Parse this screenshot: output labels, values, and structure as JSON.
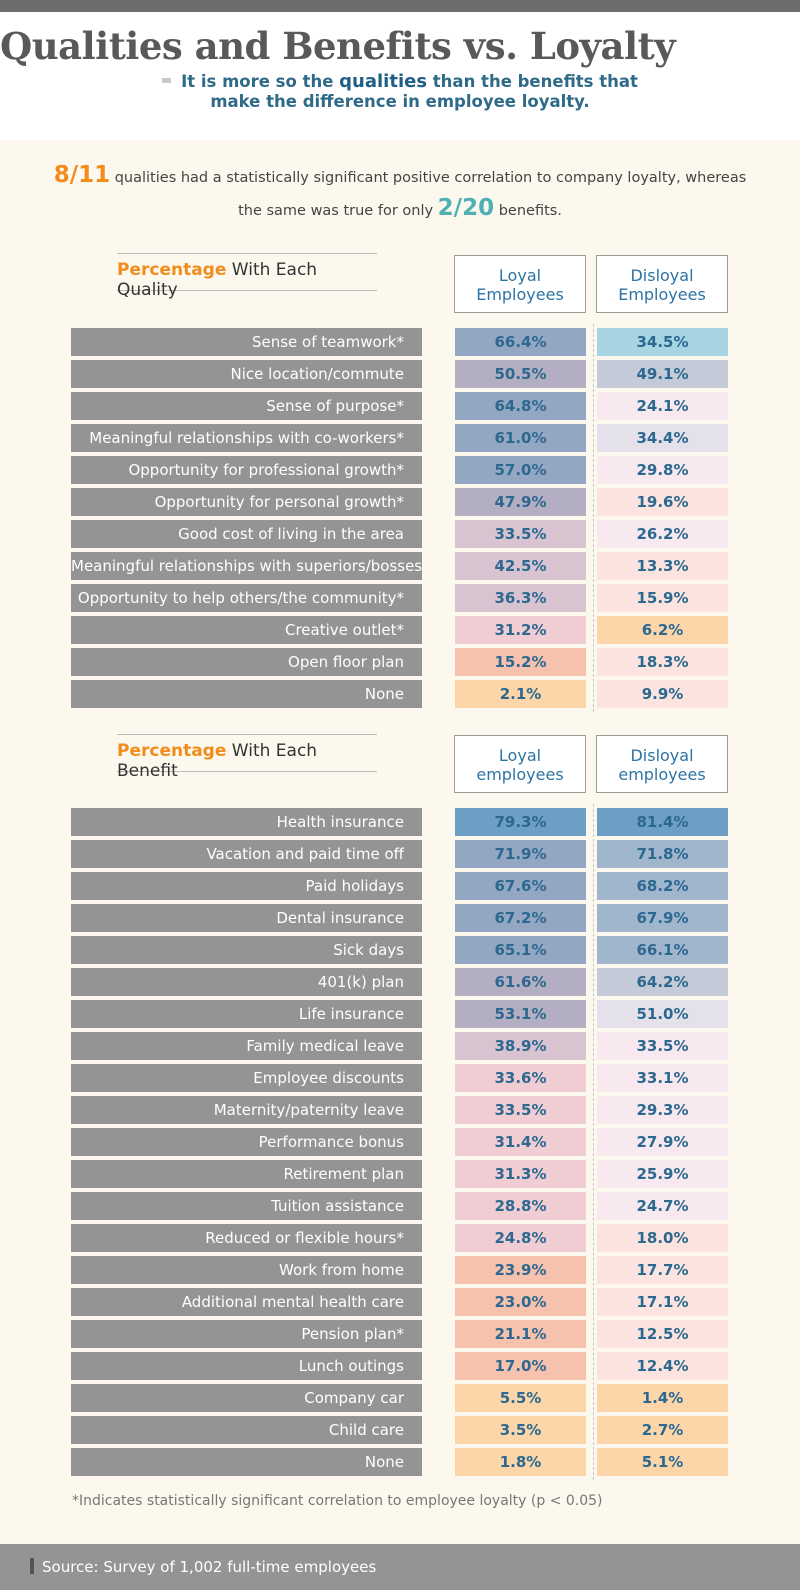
{
  "header": {
    "title": "Qualities and Benefits vs. Loyalty",
    "subtitle_part1": "It is more so the",
    "subtitle_emph": "qualities",
    "subtitle_part2": "than the benefits that make the difference in employee loyalty."
  },
  "intro": {
    "stat1": "8/11",
    "text1": "qualities had a statistically significant positive correlation to company loyalty, whereas the same was true for only",
    "stat2": "2/20",
    "text2": "benefits."
  },
  "colors": {
    "loyal_scale": [
      "#fcd6a8",
      "#f6c2ad",
      "#efcdd3",
      "#d8c3d0",
      "#b4aec2",
      "#93a7c2",
      "#6d9ec4"
    ],
    "disloyal_scale": [
      "#fcd6a8",
      "#fbe4df",
      "#f7e9ef",
      "#e4e1ea",
      "#c5cad9",
      "#9fb6cd",
      "#6d9ec4"
    ],
    "top_disloyal_quality": "#a6d4e3"
  },
  "chart_data": [
    {
      "type": "table",
      "title_accent": "Percentage",
      "title_rest": "With Each Quality",
      "columns": [
        "Loyal Employees",
        "Disloyal Employees"
      ],
      "rows": [
        {
          "label": "Sense of teamwork*",
          "loyal": 66.4,
          "disloyal": 34.5,
          "loyal_text": "66.4%",
          "disloyal_text": "34.5%"
        },
        {
          "label": "Nice location/commute",
          "loyal": 50.5,
          "disloyal": 49.1,
          "loyal_text": "50.5%",
          "disloyal_text": "49.1%"
        },
        {
          "label": "Sense of purpose*",
          "loyal": 64.8,
          "disloyal": 24.1,
          "loyal_text": "64.8%",
          "disloyal_text": "24.1%"
        },
        {
          "label": "Meaningful relationships with co-workers*",
          "loyal": 61.0,
          "disloyal": 34.4,
          "loyal_text": "61.0%",
          "disloyal_text": "34.4%"
        },
        {
          "label": "Opportunity for professional growth*",
          "loyal": 57.0,
          "disloyal": 29.8,
          "loyal_text": "57.0%",
          "disloyal_text": "29.8%"
        },
        {
          "label": "Opportunity for personal growth*",
          "loyal": 47.9,
          "disloyal": 19.6,
          "loyal_text": "47.9%",
          "disloyal_text": "19.6%"
        },
        {
          "label": "Good cost of living in the area",
          "loyal": 33.5,
          "disloyal": 26.2,
          "loyal_text": "33.5%",
          "disloyal_text": "26.2%"
        },
        {
          "label": "Meaningful relationships with superiors/bosses*",
          "loyal": 42.5,
          "disloyal": 13.3,
          "loyal_text": "42.5%",
          "disloyal_text": "13.3%"
        },
        {
          "label": "Opportunity to help others/the community*",
          "loyal": 36.3,
          "disloyal": 15.9,
          "loyal_text": "36.3%",
          "disloyal_text": "15.9%"
        },
        {
          "label": "Creative outlet*",
          "loyal": 31.2,
          "disloyal": 6.2,
          "loyal_text": "31.2%",
          "disloyal_text": "6.2%"
        },
        {
          "label": "Open floor plan",
          "loyal": 15.2,
          "disloyal": 18.3,
          "loyal_text": "15.2%",
          "disloyal_text": "18.3%"
        },
        {
          "label": "None",
          "loyal": 2.1,
          "disloyal": 9.9,
          "loyal_text": "2.1%",
          "disloyal_text": "9.9%"
        }
      ]
    },
    {
      "type": "table",
      "title_accent": "Percentage",
      "title_rest": "With Each Benefit",
      "columns": [
        "Loyal employees",
        "Disloyal employees"
      ],
      "rows": [
        {
          "label": "Health insurance",
          "loyal": 79.3,
          "disloyal": 81.4,
          "loyal_text": "79.3%",
          "disloyal_text": "81.4%"
        },
        {
          "label": "Vacation and paid time off",
          "loyal": 71.9,
          "disloyal": 71.8,
          "loyal_text": "71.9%",
          "disloyal_text": "71.8%"
        },
        {
          "label": "Paid holidays",
          "loyal": 67.6,
          "disloyal": 68.2,
          "loyal_text": "67.6%",
          "disloyal_text": "68.2%"
        },
        {
          "label": "Dental insurance",
          "loyal": 67.2,
          "disloyal": 67.9,
          "loyal_text": "67.2%",
          "disloyal_text": "67.9%"
        },
        {
          "label": "Sick days",
          "loyal": 65.1,
          "disloyal": 66.1,
          "loyal_text": "65.1%",
          "disloyal_text": "66.1%"
        },
        {
          "label": "401(k) plan",
          "loyal": 61.6,
          "disloyal": 64.2,
          "loyal_text": "61.6%",
          "disloyal_text": "64.2%"
        },
        {
          "label": "Life insurance",
          "loyal": 53.1,
          "disloyal": 51.0,
          "loyal_text": "53.1%",
          "disloyal_text": "51.0%"
        },
        {
          "label": "Family medical leave",
          "loyal": 38.9,
          "disloyal": 33.5,
          "loyal_text": "38.9%",
          "disloyal_text": "33.5%"
        },
        {
          "label": "Employee discounts",
          "loyal": 33.6,
          "disloyal": 33.1,
          "loyal_text": "33.6%",
          "disloyal_text": "33.1%"
        },
        {
          "label": "Maternity/paternity leave",
          "loyal": 33.5,
          "disloyal": 29.3,
          "loyal_text": "33.5%",
          "disloyal_text": "29.3%"
        },
        {
          "label": "Performance bonus",
          "loyal": 31.4,
          "disloyal": 27.9,
          "loyal_text": "31.4%",
          "disloyal_text": "27.9%"
        },
        {
          "label": "Retirement plan",
          "loyal": 31.3,
          "disloyal": 25.9,
          "loyal_text": "31.3%",
          "disloyal_text": "25.9%"
        },
        {
          "label": "Tuition assistance",
          "loyal": 28.8,
          "disloyal": 24.7,
          "loyal_text": "28.8%",
          "disloyal_text": "24.7%"
        },
        {
          "label": "Reduced or flexible hours*",
          "loyal": 24.8,
          "disloyal": 18.0,
          "loyal_text": "24.8%",
          "disloyal_text": "18.0%"
        },
        {
          "label": "Work from home",
          "loyal": 23.9,
          "disloyal": 17.7,
          "loyal_text": "23.9%",
          "disloyal_text": "17.7%"
        },
        {
          "label": "Additional mental health care",
          "loyal": 23.0,
          "disloyal": 17.1,
          "loyal_text": "23.0%",
          "disloyal_text": "17.1%"
        },
        {
          "label": "Pension plan*",
          "loyal": 21.1,
          "disloyal": 12.5,
          "loyal_text": "21.1%",
          "disloyal_text": "12.5%"
        },
        {
          "label": "Lunch outings",
          "loyal": 17.0,
          "disloyal": 12.4,
          "loyal_text": "17.0%",
          "disloyal_text": "12.4%"
        },
        {
          "label": "Company car",
          "loyal": 5.5,
          "disloyal": 1.4,
          "loyal_text": "5.5%",
          "disloyal_text": "1.4%"
        },
        {
          "label": "Child care",
          "loyal": 3.5,
          "disloyal": 2.7,
          "loyal_text": "3.5%",
          "disloyal_text": "2.7%"
        },
        {
          "label": "None",
          "loyal": 1.8,
          "disloyal": 5.1,
          "loyal_text": "1.8%",
          "disloyal_text": "5.1%"
        }
      ]
    }
  ],
  "footnote": "*Indicates statistically significant correlation to employee loyalty (p < 0.05)",
  "source": "Source: Survey of 1,002 full-time employees"
}
